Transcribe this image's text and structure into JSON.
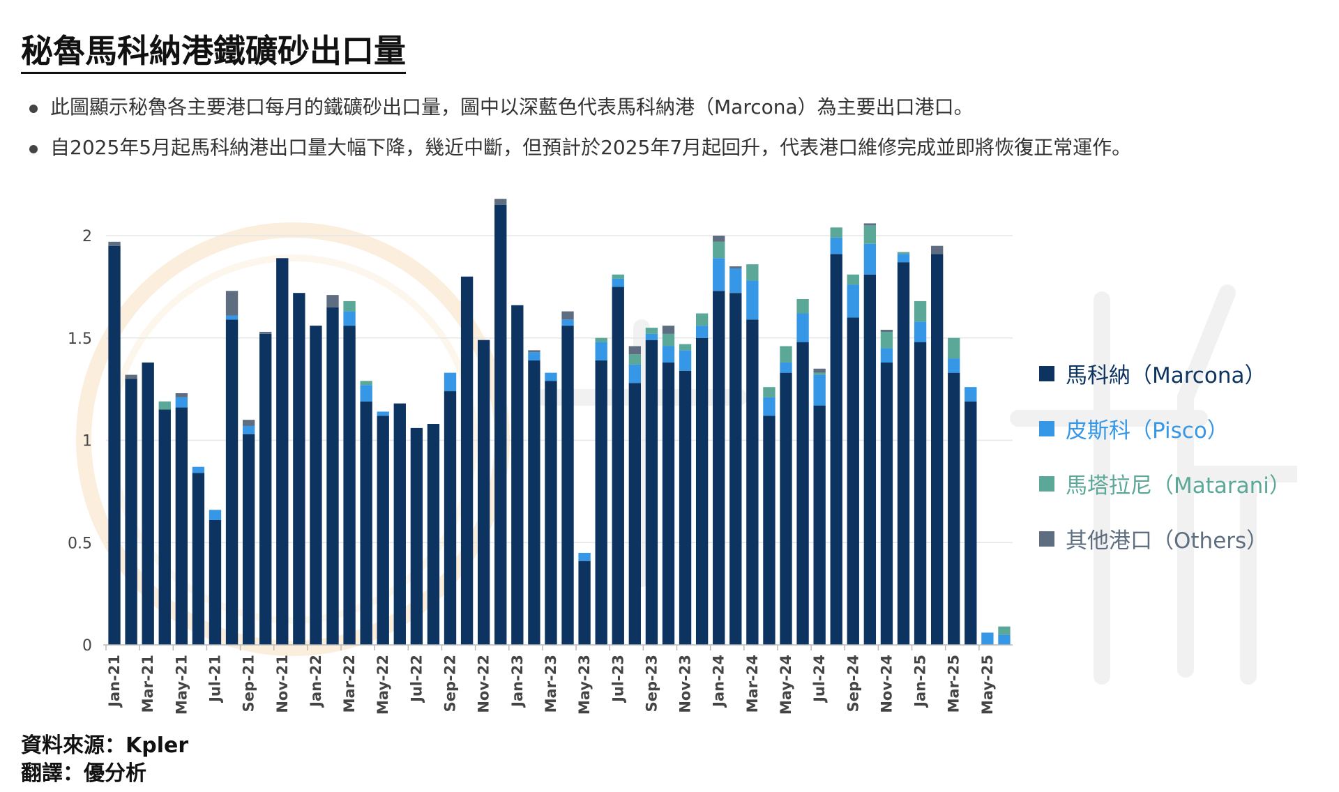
{
  "page": {
    "title": "秘魯馬科納港鐵礦砂出口量",
    "bullets": [
      "此圖顯示秘魯各主要港口每月的鐵礦砂出口量，圖中以深藍色代表馬科納港（Marcona）為主要出口港口。",
      "自2025年5月起馬科納港出口量大幅下降，幾近中斷，但預計於2025年7月起回升，代表港口維修完成並即將恢復正常運作。"
    ],
    "source": "資料來源：Kpler",
    "translator": "翻譯：優分析"
  },
  "chart_data": {
    "type": "bar",
    "stacked": true,
    "ylim": [
      0,
      2.2
    ],
    "yticks": [
      0,
      0.5,
      1,
      1.5,
      2
    ],
    "ytick_labels": [
      "0",
      "0.5",
      "1",
      "1.5",
      "2"
    ],
    "grid": true,
    "legend_position": "right",
    "xtick_labels": [
      "Jan-21",
      "Mar-21",
      "May-21",
      "Jul-21",
      "Sep-21",
      "Nov-21",
      "Jan-22",
      "Mar-22",
      "May-22",
      "Jul-22",
      "Sep-22",
      "Nov-22",
      "Jan-23",
      "Mar-23",
      "May-23",
      "Jul-23",
      "Sep-23",
      "Nov-23",
      "Jan-24",
      "Mar-24",
      "May-24",
      "Jul-24",
      "Sep-24",
      "Nov-24",
      "Jan-25",
      "Mar-25",
      "May-25"
    ],
    "categories": [
      "Jan-21",
      "Feb-21",
      "Mar-21",
      "Apr-21",
      "May-21",
      "Jun-21",
      "Jul-21",
      "Aug-21",
      "Sep-21",
      "Oct-21",
      "Nov-21",
      "Dec-21",
      "Jan-22",
      "Feb-22",
      "Mar-22",
      "Apr-22",
      "May-22",
      "Jun-22",
      "Jul-22",
      "Aug-22",
      "Sep-22",
      "Oct-22",
      "Nov-22",
      "Dec-22",
      "Jan-23",
      "Feb-23",
      "Mar-23",
      "Apr-23",
      "May-23",
      "Jun-23",
      "Jul-23",
      "Aug-23",
      "Sep-23",
      "Oct-23",
      "Nov-23",
      "Dec-23",
      "Jan-24",
      "Feb-24",
      "Mar-24",
      "Apr-24",
      "May-24",
      "Jun-24",
      "Jul-24",
      "Aug-24",
      "Sep-24",
      "Oct-24",
      "Nov-24",
      "Dec-24",
      "Jan-25",
      "Feb-25",
      "Mar-25",
      "Apr-25",
      "May-25",
      "Jun-25"
    ],
    "series": [
      {
        "name": "馬科納（Marcona）",
        "color": "#0d3461",
        "values": [
          1.95,
          1.3,
          1.38,
          1.15,
          1.16,
          0.84,
          0.61,
          1.59,
          1.03,
          1.52,
          1.89,
          1.72,
          1.56,
          1.65,
          1.56,
          1.19,
          1.12,
          1.18,
          1.06,
          1.08,
          1.24,
          1.8,
          1.49,
          2.15,
          1.66,
          1.39,
          1.29,
          1.56,
          0.41,
          1.39,
          1.75,
          1.28,
          1.49,
          1.38,
          1.34,
          1.5,
          1.73,
          1.72,
          1.59,
          1.12,
          1.33,
          1.48,
          1.17,
          1.91,
          1.6,
          1.81,
          1.38,
          1.87,
          1.48,
          1.91,
          1.33,
          1.19,
          0,
          0
        ]
      },
      {
        "name": "皮斯科（Pisco）",
        "color": "#3597e6",
        "values": [
          0,
          0,
          0,
          0,
          0.05,
          0.03,
          0.05,
          0.02,
          0.04,
          0,
          0,
          0,
          0,
          0,
          0.07,
          0.08,
          0.02,
          0,
          0,
          0,
          0.09,
          0,
          0,
          0,
          0,
          0.04,
          0.04,
          0.03,
          0.04,
          0.09,
          0.04,
          0.09,
          0.03,
          0.08,
          0.1,
          0.06,
          0.16,
          0.12,
          0.19,
          0.09,
          0.05,
          0.14,
          0.15,
          0.08,
          0.16,
          0.15,
          0.07,
          0.04,
          0.1,
          0,
          0.07,
          0.07,
          0.06,
          0.05
        ]
      },
      {
        "name": "馬塔拉尼（Matarani）",
        "color": "#5ba898",
        "values": [
          0,
          0,
          0,
          0.04,
          0,
          0,
          0,
          0,
          0,
          0,
          0,
          0,
          0,
          0,
          0.05,
          0.02,
          0,
          0,
          0,
          0,
          0,
          0,
          0,
          0,
          0,
          0,
          0,
          0,
          0,
          0.02,
          0.02,
          0.05,
          0.03,
          0.06,
          0.03,
          0.06,
          0.08,
          0,
          0.08,
          0.05,
          0.08,
          0.07,
          0.01,
          0.05,
          0.05,
          0.09,
          0.08,
          0.01,
          0.1,
          0,
          0.1,
          0,
          0,
          0.04
        ]
      },
      {
        "name": "其他港口（Others）",
        "color": "#5e6e80",
        "values": [
          0.02,
          0.02,
          0,
          0,
          0.02,
          0,
          0,
          0.12,
          0.03,
          0.01,
          0,
          0,
          0,
          0.06,
          0,
          0,
          0,
          0,
          0,
          0,
          0,
          0,
          0,
          0.03,
          0,
          0.01,
          0,
          0.04,
          0,
          0,
          0,
          0.04,
          0,
          0.04,
          0,
          0,
          0.03,
          0.01,
          0,
          0,
          0,
          0,
          0.02,
          0,
          0,
          0.01,
          0.01,
          0,
          0,
          0.04,
          0,
          0,
          0,
          0
        ]
      }
    ]
  }
}
